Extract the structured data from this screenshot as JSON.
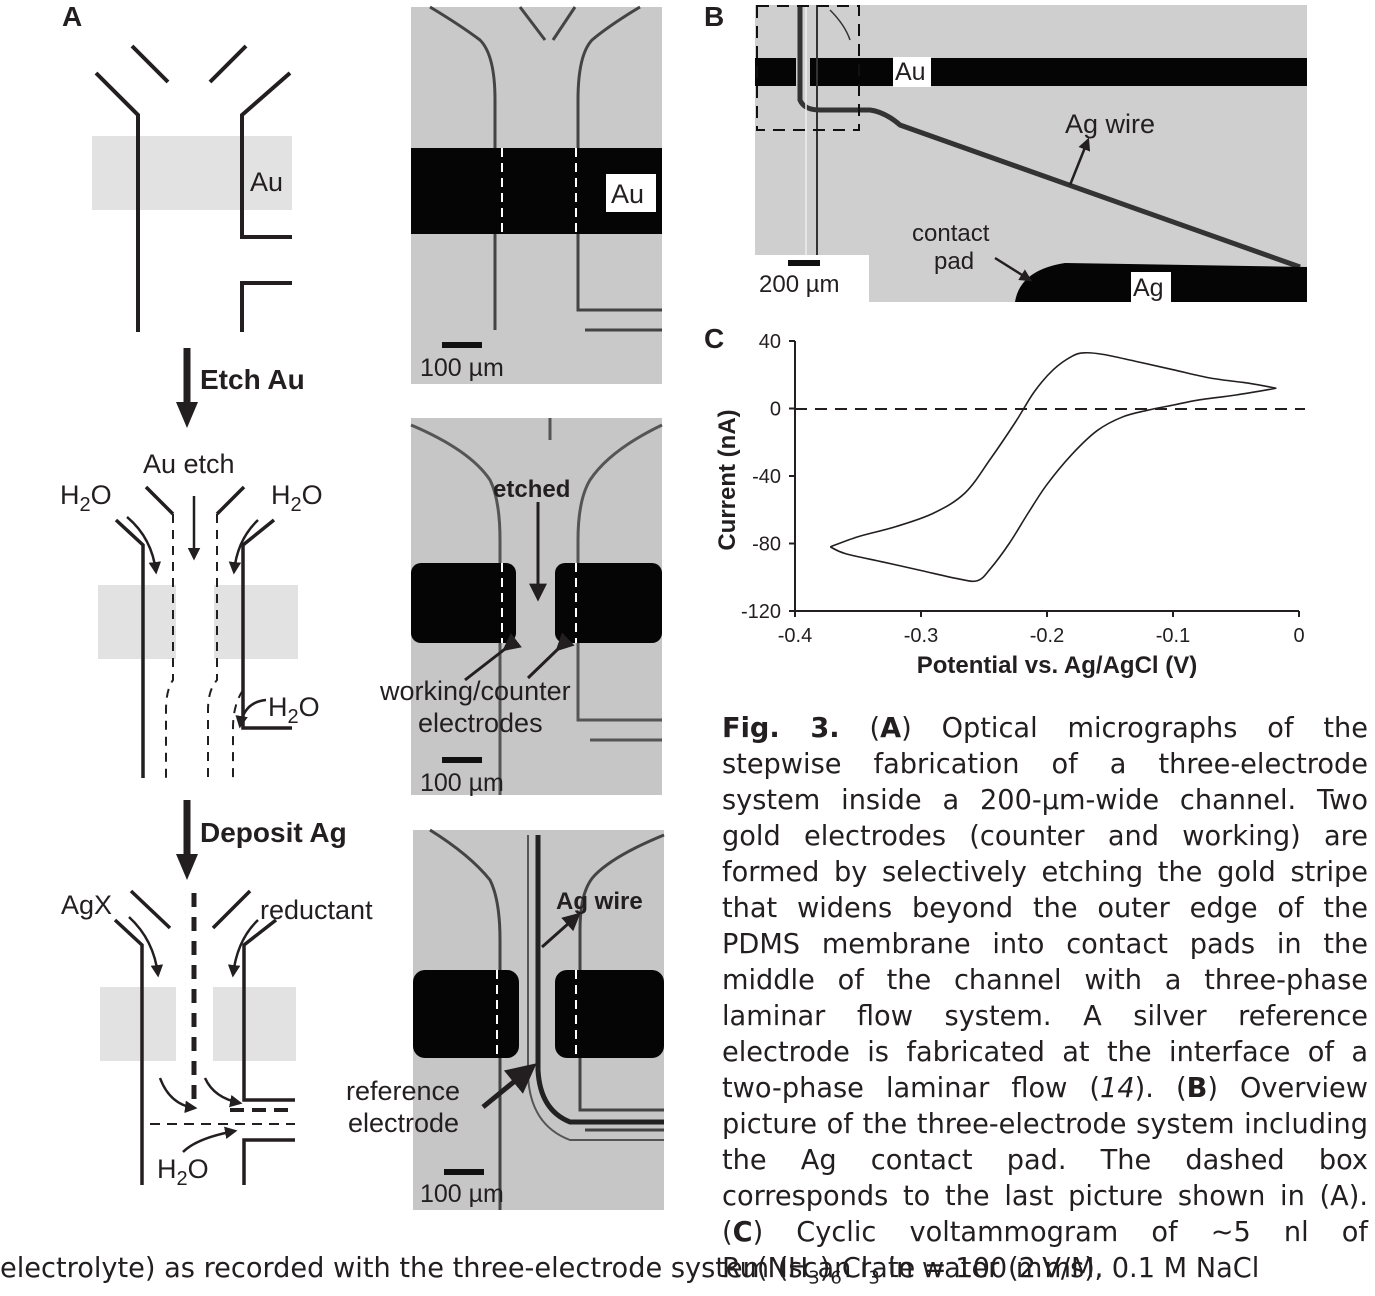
{
  "panel_letters": {
    "a": "A",
    "b": "B",
    "c": "C"
  },
  "schematic": {
    "au": "Au",
    "step1": "Etch Au",
    "step2": "Deposit Ag",
    "au_etch": "Au etch",
    "h2o": "H2O",
    "agx": "AgX",
    "reductant": "reductant"
  },
  "micrographs": {
    "m1_au": "Au",
    "m2_etched": "etched",
    "m2_electrodes_1": "working/counter",
    "m2_electrodes_2": "electrodes",
    "m3_agwire": "Ag wire",
    "m3_reference_1": "reference",
    "m3_reference_2": "electrode",
    "scalebar_100": "100 µm"
  },
  "overview": {
    "au": "Au",
    "ag": "Ag",
    "ag_wire": "Ag wire",
    "contact_1": "contact",
    "contact_2": "pad",
    "scalebar_200": "200 µm"
  },
  "chart_data": {
    "type": "line",
    "title": "",
    "xlabel": "Potential vs. Ag/AgCl (V)",
    "ylabel": "Current (nA)",
    "xlim": [
      -0.4,
      0
    ],
    "ylim": [
      -120,
      40
    ],
    "xticks": [
      -0.4,
      -0.3,
      -0.2,
      -0.1,
      0
    ],
    "yticks": [
      40,
      0,
      -40,
      -80,
      -120
    ],
    "xtick_labels": [
      "-0.4",
      "-0.3",
      "-0.2",
      "-0.1",
      "0"
    ],
    "ytick_labels": [
      "40",
      "0",
      "-40",
      "-80",
      "-120"
    ],
    "zero_line": "dashed",
    "series": [
      {
        "forward": [
          [
            -0.018,
            12
          ],
          [
            -0.05,
            8
          ],
          [
            -0.08,
            5
          ],
          [
            -0.1,
            2
          ],
          [
            -0.12,
            -1
          ],
          [
            -0.14,
            -5
          ],
          [
            -0.16,
            -13
          ],
          [
            -0.18,
            -27
          ],
          [
            -0.2,
            -45
          ],
          [
            -0.215,
            -62
          ],
          [
            -0.23,
            -80
          ],
          [
            -0.245,
            -95
          ],
          [
            -0.255,
            -102
          ],
          [
            -0.27,
            -101
          ],
          [
            -0.3,
            -96
          ],
          [
            -0.33,
            -91
          ],
          [
            -0.36,
            -86
          ],
          [
            -0.372,
            -82
          ]
        ],
        "reverse": [
          [
            -0.372,
            -82
          ],
          [
            -0.35,
            -76
          ],
          [
            -0.32,
            -70
          ],
          [
            -0.29,
            -62
          ],
          [
            -0.265,
            -50
          ],
          [
            -0.245,
            -30
          ],
          [
            -0.225,
            -8
          ],
          [
            -0.21,
            10
          ],
          [
            -0.195,
            23
          ],
          [
            -0.18,
            31
          ],
          [
            -0.17,
            33
          ],
          [
            -0.155,
            32
          ],
          [
            -0.13,
            28
          ],
          [
            -0.1,
            23
          ],
          [
            -0.07,
            18
          ],
          [
            -0.04,
            15
          ],
          [
            -0.018,
            12
          ]
        ]
      }
    ]
  },
  "caption": {
    "fig": "Fig. 3.",
    "text_html": " (<b>A</b>) Optical micrographs of the stepwise fabrication of a three-electrode system inside a 200-µm-wide channel. Two gold electrodes (counter and working) are formed by selective&shy;ly etching the gold stripe that widens beyond the outer edge of the PDMS membrane into contact pads in the middle of the channel with a three-phase laminar flow system. A silver reference electrode is fabricated at the inter&shy;face of a two-phase laminar flow (<i>14</i>). (<b>B</b>) Overview picture of the three-electrode sys&shy;tem including the Ag contact pad. The dashed box corresponds to the last picture shown in (A). (<b>C</b>) Cyclic voltammogram of ∼5 nl of Ru(NH<sub style=\"font-size:18px\">3</sub>)<sub style=\"font-size:18px\">6</sub>Cl<sub style=\"font-size:18px\">3</sub> in water (2 mM, 0.1 M NaCl",
    "tail": "electrolyte) as recorded with the three-electrode system (scan rate = 100 mV/s)."
  }
}
